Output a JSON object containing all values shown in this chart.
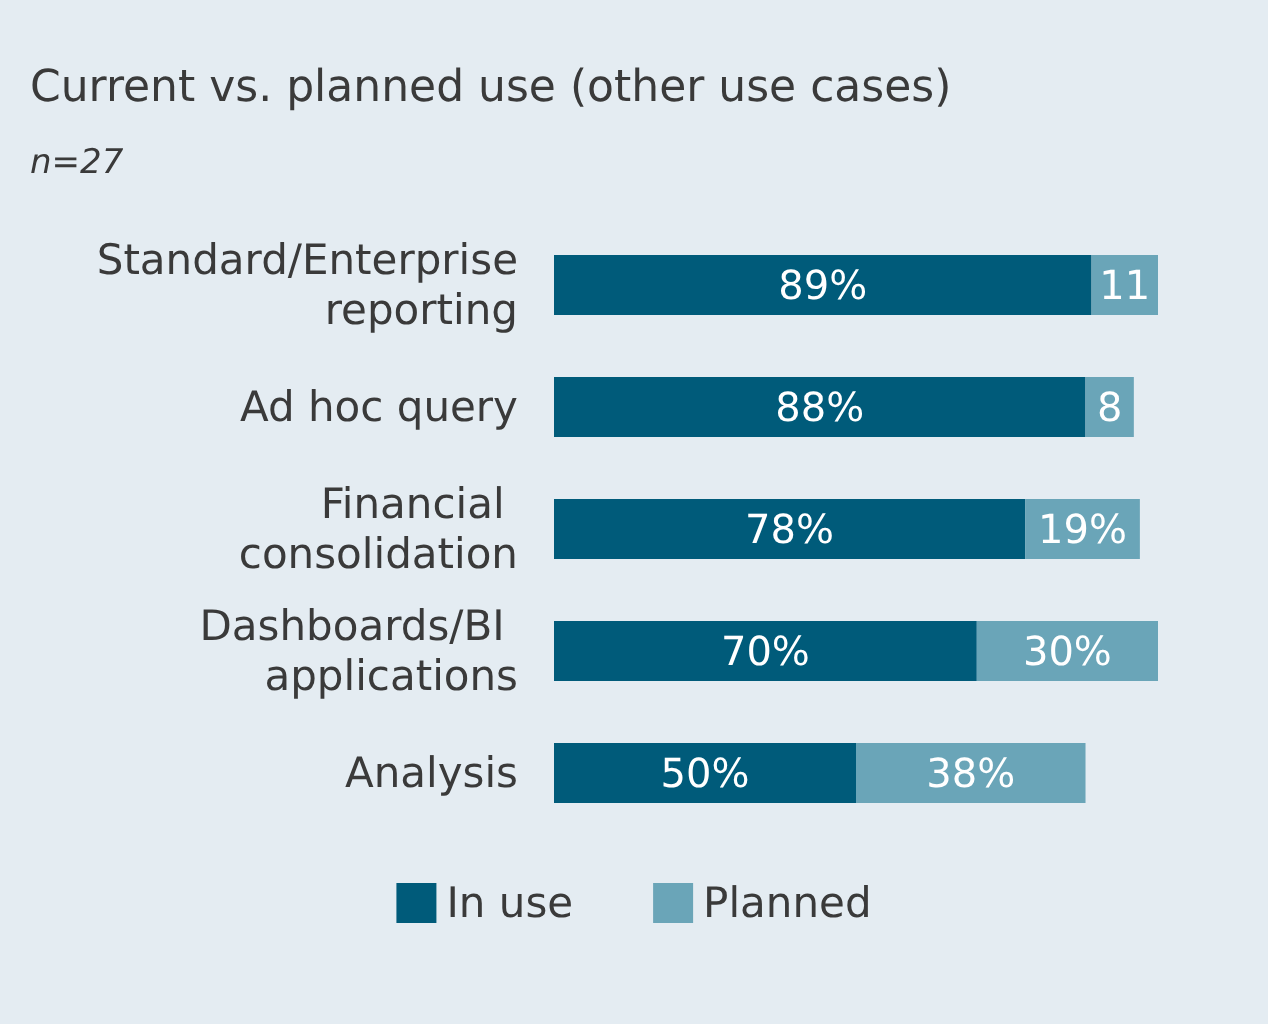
{
  "chart_data": {
    "type": "bar",
    "orientation": "horizontal",
    "stacked": true,
    "title": "Current vs. planned use (other use cases)",
    "subtitle": "n=27",
    "categories": [
      "Standard/Enterprise reporting",
      "Ad hoc query",
      "Financial consolidation",
      "Dashboards/BI applications",
      "Analysis"
    ],
    "xlim": [
      0,
      100
    ],
    "tick_labels": "y",
    "legend": "bottom",
    "series": [
      {
        "name": "In use",
        "color": "#005b7a",
        "values": [
          89,
          88,
          78,
          70,
          50
        ],
        "value_labels": [
          "89%",
          "88%",
          "78%",
          "70%",
          "50%"
        ]
      },
      {
        "name": "Planned",
        "color": "#6aa5b8",
        "values": [
          11,
          8,
          19,
          30,
          38
        ],
        "value_labels": [
          "11",
          "8",
          "19%",
          "30%",
          "38%"
        ]
      }
    ]
  }
}
